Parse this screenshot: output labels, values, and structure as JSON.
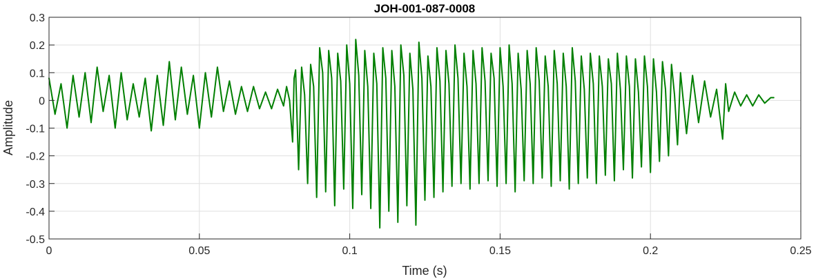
{
  "chart_data": {
    "type": "line",
    "title": "JOH-001-087-0008",
    "xlabel": "Time (s)",
    "ylabel": "Amplitude",
    "xlim": [
      0,
      0.25
    ],
    "ylim": [
      -0.5,
      0.3
    ],
    "xticks": [
      0,
      0.05,
      0.1,
      0.15,
      0.2,
      0.25
    ],
    "xtick_labels": [
      "0",
      "0.05",
      "0.1",
      "0.15",
      "0.2",
      "0.25"
    ],
    "yticks": [
      0.3,
      0.2,
      0.1,
      0,
      -0.1,
      -0.2,
      -0.3,
      -0.4,
      -0.5
    ],
    "ytick_labels": [
      "0.3",
      "0.2",
      "0.1",
      "0",
      "-0.1",
      "-0.2",
      "-0.3",
      "-0.4",
      "-0.5"
    ],
    "grid": true,
    "series": [
      {
        "color": "#007f00",
        "x": [
          0,
          0.002,
          0.004,
          0.006,
          0.008,
          0.01,
          0.012,
          0.014,
          0.016,
          0.018,
          0.02,
          0.022,
          0.024,
          0.026,
          0.028,
          0.03,
          0.032,
          0.034,
          0.036,
          0.038,
          0.04,
          0.042,
          0.044,
          0.046,
          0.048,
          0.05,
          0.052,
          0.054,
          0.056,
          0.058,
          0.06,
          0.062,
          0.064,
          0.066,
          0.068,
          0.07,
          0.072,
          0.074,
          0.076,
          0.078,
          0.079,
          0.08,
          0.081,
          0.0815,
          0.082,
          0.083,
          0.084,
          0.085,
          0.086,
          0.087,
          0.088,
          0.089,
          0.09,
          0.091,
          0.092,
          0.093,
          0.094,
          0.095,
          0.096,
          0.097,
          0.098,
          0.099,
          0.1,
          0.101,
          0.102,
          0.103,
          0.104,
          0.105,
          0.106,
          0.107,
          0.108,
          0.109,
          0.11,
          0.111,
          0.112,
          0.113,
          0.114,
          0.115,
          0.116,
          0.117,
          0.118,
          0.119,
          0.12,
          0.121,
          0.122,
          0.123,
          0.124,
          0.125,
          0.126,
          0.127,
          0.128,
          0.129,
          0.13,
          0.131,
          0.132,
          0.133,
          0.134,
          0.135,
          0.136,
          0.137,
          0.138,
          0.139,
          0.14,
          0.141,
          0.142,
          0.143,
          0.144,
          0.145,
          0.146,
          0.147,
          0.148,
          0.149,
          0.15,
          0.151,
          0.152,
          0.153,
          0.154,
          0.155,
          0.156,
          0.157,
          0.158,
          0.159,
          0.16,
          0.161,
          0.162,
          0.163,
          0.164,
          0.165,
          0.166,
          0.167,
          0.168,
          0.169,
          0.17,
          0.171,
          0.172,
          0.173,
          0.174,
          0.175,
          0.176,
          0.177,
          0.178,
          0.179,
          0.18,
          0.181,
          0.182,
          0.183,
          0.184,
          0.185,
          0.186,
          0.187,
          0.188,
          0.189,
          0.19,
          0.191,
          0.192,
          0.193,
          0.194,
          0.195,
          0.196,
          0.197,
          0.198,
          0.199,
          0.2,
          0.201,
          0.202,
          0.203,
          0.204,
          0.205,
          0.206,
          0.207,
          0.208,
          0.209,
          0.21,
          0.212,
          0.214,
          0.216,
          0.218,
          0.22,
          0.222,
          0.224,
          0.225,
          0.226,
          0.228,
          0.23,
          0.232,
          0.234,
          0.236,
          0.238,
          0.24,
          0.241
        ],
        "y": [
          0.08,
          -0.05,
          0.06,
          -0.1,
          0.09,
          -0.06,
          0.1,
          -0.08,
          0.12,
          -0.04,
          0.09,
          -0.1,
          0.1,
          -0.07,
          0.06,
          -0.06,
          0.08,
          -0.11,
          0.09,
          -0.09,
          0.14,
          -0.07,
          0.12,
          -0.05,
          0.09,
          -0.1,
          0.1,
          -0.06,
          0.12,
          -0.04,
          0.07,
          -0.05,
          0.05,
          -0.04,
          0.05,
          -0.03,
          0.03,
          -0.03,
          0.04,
          -0.02,
          0.05,
          0.0,
          -0.15,
          0.08,
          0.11,
          -0.25,
          0.12,
          0.02,
          -0.3,
          0.13,
          0.05,
          -0.35,
          0.19,
          0.1,
          -0.33,
          0.18,
          0.08,
          -0.38,
          0.17,
          0.07,
          -0.32,
          0.2,
          0.06,
          -0.39,
          0.22,
          0.09,
          -0.34,
          0.18,
          0.05,
          -0.39,
          0.17,
          0.06,
          -0.46,
          0.19,
          0.08,
          -0.4,
          0.18,
          0.05,
          -0.44,
          0.2,
          0.09,
          -0.38,
          0.17,
          0.04,
          -0.45,
          0.21,
          0.08,
          -0.36,
          0.16,
          0.05,
          -0.35,
          0.19,
          0.07,
          -0.33,
          0.18,
          0.06,
          -0.31,
          0.2,
          0.08,
          -0.3,
          0.17,
          0.05,
          -0.32,
          0.18,
          0.06,
          -0.3,
          0.19,
          0.07,
          -0.29,
          0.17,
          0.08,
          -0.31,
          0.19,
          0.05,
          -0.3,
          0.2,
          0.06,
          -0.33,
          0.17,
          0.04,
          -0.29,
          0.18,
          0.06,
          -0.3,
          0.19,
          0.07,
          -0.28,
          0.16,
          0.05,
          -0.31,
          0.18,
          0.06,
          -0.29,
          0.17,
          0.05,
          -0.32,
          0.19,
          0.07,
          -0.3,
          0.16,
          0.04,
          -0.28,
          0.17,
          0.06,
          -0.3,
          0.16,
          0.05,
          -0.27,
          0.15,
          0.06,
          -0.29,
          0.17,
          0.04,
          -0.25,
          0.16,
          0.05,
          -0.28,
          0.15,
          0.03,
          -0.24,
          0.16,
          0.05,
          -0.26,
          0.15,
          0.03,
          -0.22,
          0.14,
          0.04,
          -0.2,
          0.13,
          0.02,
          -0.16,
          0.1,
          -0.12,
          0.09,
          -0.08,
          0.07,
          -0.06,
          0.04,
          -0.14,
          0.06,
          -0.04,
          0.03,
          -0.02,
          0.02,
          -0.02,
          0.02,
          -0.01,
          0.01,
          0.01
        ]
      }
    ]
  }
}
